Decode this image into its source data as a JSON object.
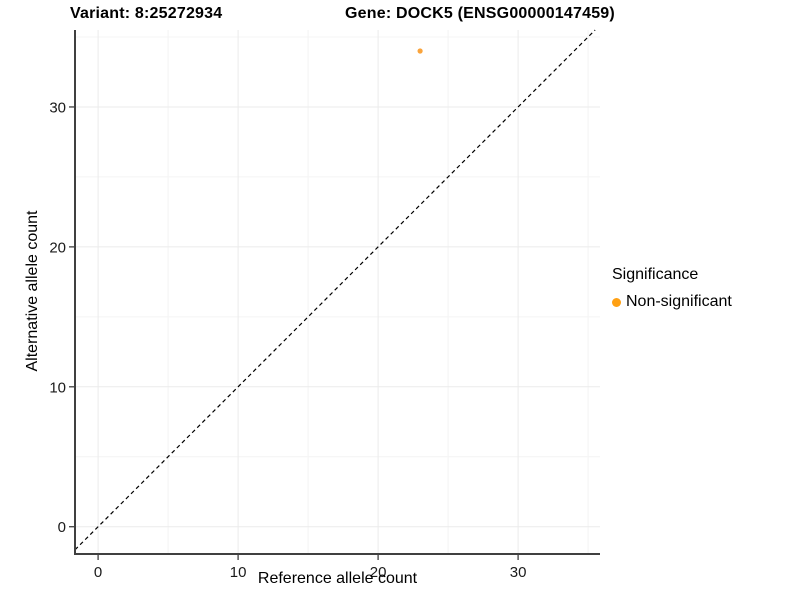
{
  "titles": {
    "variant": "Variant: 8:25272934",
    "gene": "Gene: DOCK5 (ENSG00000147459)"
  },
  "chart_data": {
    "type": "scatter",
    "title": "Variant: 8:25272934  Gene: DOCK5 (ENSG00000147459)",
    "xlabel": "Reference allele count",
    "ylabel": "Alternative allele count",
    "xlim": [
      -1.65,
      35.85
    ],
    "ylim": [
      -1.95,
      35.5
    ],
    "x_ticks": [
      0,
      10,
      20,
      30
    ],
    "y_ticks": [
      0,
      10,
      20,
      30
    ],
    "x_minor_ticks": [
      5,
      15,
      25,
      35
    ],
    "y_minor_ticks": [
      5,
      15,
      25,
      35
    ],
    "grid": true,
    "points": [
      {
        "x": 23,
        "y": 34,
        "series": "Non-significant"
      }
    ],
    "reference_line": {
      "slope": 1,
      "intercept": 0,
      "style": "dashed",
      "color": "#000000"
    },
    "legend": {
      "title": "Significance",
      "position": "right",
      "items": [
        {
          "label": "Non-significant",
          "color": "#FFA013"
        }
      ]
    },
    "colors": {
      "non_significant_point": "#FAA43C"
    },
    "axis_color": "#404040",
    "tick_label_color": "#1a1a1a",
    "grid_major_color": "#EBEBEB",
    "grid_minor_color": "#F4F4F4"
  }
}
